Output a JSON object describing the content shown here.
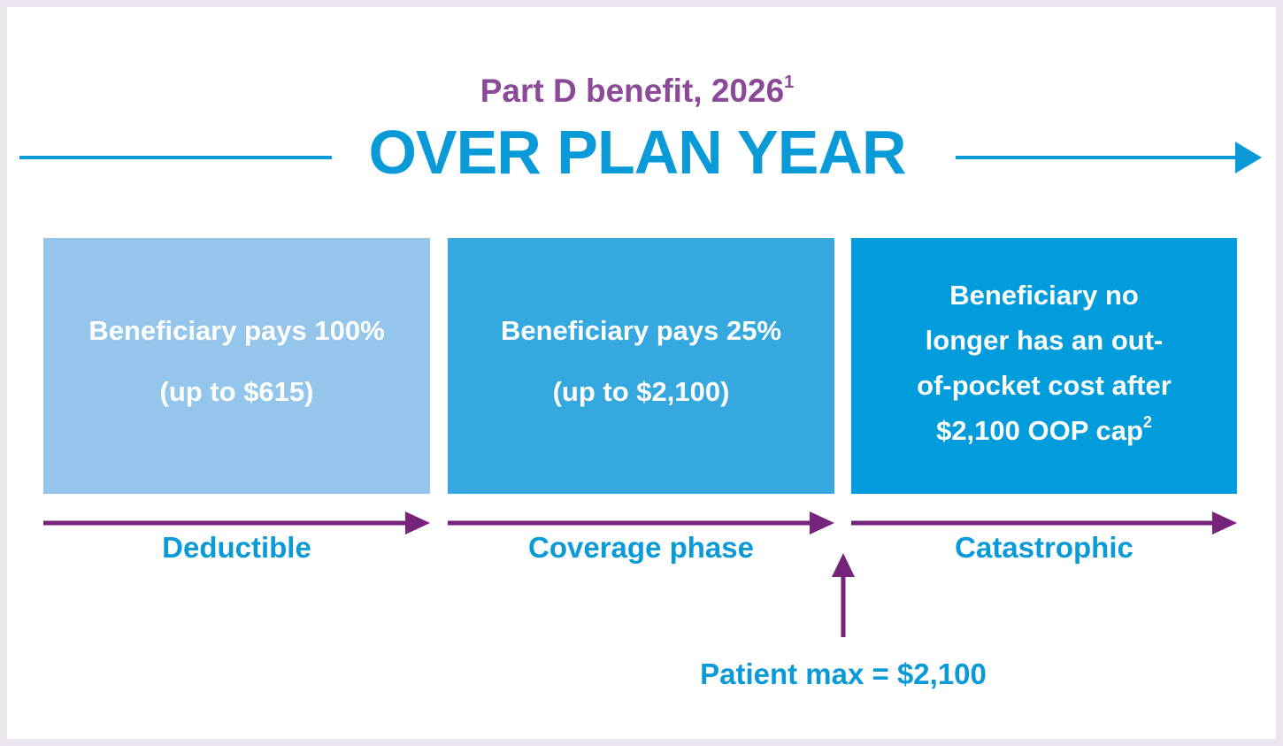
{
  "header": {
    "subtitle": "Part D benefit, 2026",
    "subtitle_sup": "1",
    "title": "OVER PLAN YEAR"
  },
  "phases": [
    {
      "lines": [
        "Beneficiary pays 100%",
        "(up to $615)"
      ],
      "label": "Deductible"
    },
    {
      "lines": [
        "Beneficiary pays 25%",
        "(up to $2,100)"
      ],
      "label": "Coverage phase"
    },
    {
      "lines": [
        "Beneficiary no",
        "longer has an out-",
        "of-pocket cost after",
        "$2,100 OOP cap"
      ],
      "sup": "2",
      "label": "Catastrophic"
    }
  ],
  "patient_max": "Patient max = $2,100"
}
